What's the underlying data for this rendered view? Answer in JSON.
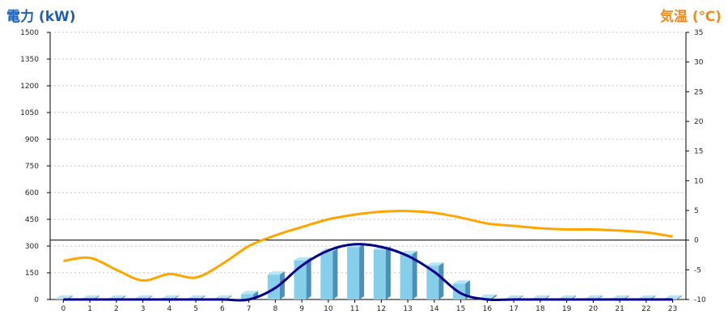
{
  "chart_data": {
    "type": "bar",
    "title_left": "電力 (kW)",
    "title_right": "気温 (℃)",
    "colors": {
      "left_title": "#1f5fb0",
      "right_title": "#f08a1c",
      "bar_front": "#87ceeb",
      "bar_side": "#4a90b8",
      "bar_top": "#b8e4f5",
      "power_line": "#00008b",
      "temp_line": "#ffa500",
      "grid": "#c0c0c0"
    },
    "x": [
      "0",
      "1",
      "2",
      "3",
      "4",
      "5",
      "6",
      "7",
      "8",
      "9",
      "10",
      "11",
      "12",
      "13",
      "14",
      "15",
      "16",
      "17",
      "18",
      "19",
      "20",
      "21",
      "22",
      "23"
    ],
    "left_axis": {
      "min": 0,
      "max": 1500,
      "ticks": [
        "0",
        "150",
        "300",
        "450",
        "600",
        "750",
        "900",
        "1050",
        "1200",
        "1350",
        "1500"
      ]
    },
    "right_axis": {
      "min": -10,
      "max": 35,
      "ticks": [
        "-10",
        "-5",
        "0",
        "5",
        "10",
        "15",
        "20",
        "25",
        "30",
        "35"
      ]
    },
    "reference_line_temp": 0,
    "grid": true,
    "series": [
      {
        "axis": "left",
        "kind": "bar",
        "values": [
          5,
          5,
          5,
          5,
          5,
          5,
          5,
          30,
          140,
          220,
          270,
          295,
          280,
          255,
          190,
          90,
          10,
          5,
          5,
          5,
          5,
          5,
          5,
          5
        ]
      },
      {
        "axis": "left",
        "kind": "line",
        "values": [
          0,
          0,
          0,
          0,
          0,
          0,
          0,
          0,
          65,
          190,
          275,
          310,
          295,
          245,
          155,
          35,
          0,
          0,
          0,
          0,
          0,
          0,
          0,
          0
        ]
      },
      {
        "axis": "right",
        "kind": "line",
        "values": [
          -3.5,
          -3,
          -5,
          -6.8,
          -5.7,
          -6.3,
          -4,
          -1,
          0.8,
          2.2,
          3.5,
          4.3,
          4.8,
          4.9,
          4.6,
          3.8,
          2.8,
          2.4,
          2.0,
          1.8,
          1.8,
          1.6,
          1.3,
          0.6
        ]
      }
    ]
  }
}
